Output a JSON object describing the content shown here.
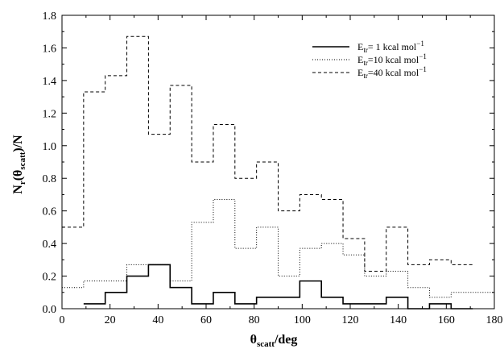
{
  "chart_data": {
    "type": "line",
    "title": "",
    "xlabel": {
      "base": "θ",
      "sub": "scatt",
      "rest": "/deg"
    },
    "ylabel": {
      "p1": "N",
      "s1": "r",
      "p2": "(θ",
      "s2": "scatt",
      "p3": ")/N"
    },
    "xlim": [
      0,
      180
    ],
    "ylim": [
      0,
      1.8
    ],
    "x_ticks": [
      "0",
      "20",
      "40",
      "60",
      "80",
      "100",
      "120",
      "140",
      "160",
      "180"
    ],
    "y_ticks": [
      "0.0",
      "0.2",
      "0.4",
      "0.6",
      "0.8",
      "1.0",
      "1.2",
      "1.4",
      "1.6",
      "1.8"
    ],
    "grid": false,
    "legend_position": "top-right",
    "bin_edges": [
      0,
      9,
      18,
      27,
      36,
      45,
      54,
      63,
      72,
      81,
      90,
      99,
      108,
      117,
      126,
      135,
      144,
      153,
      162,
      171,
      180
    ],
    "series": [
      {
        "name": {
          "pre": "E",
          "sub": "tr",
          "val": "=  1 kcal mol",
          "sup": "−1"
        },
        "style": "solid",
        "color": "#000000",
        "x_start": 9,
        "values": [
          0.03,
          0.1,
          0.2,
          0.27,
          0.13,
          0.03,
          0.1,
          0.03,
          0.07,
          0.07,
          0.17,
          0.07,
          0.03,
          0.03,
          0.07,
          0.0,
          0.03,
          0.0
        ]
      },
      {
        "name": {
          "pre": "E",
          "sub": "tr",
          "val": "=10 kcal mol",
          "sup": "−1"
        },
        "style": "dotted",
        "color": "#000000",
        "x_start": 0,
        "values": [
          0.13,
          0.17,
          0.17,
          0.27,
          0.27,
          0.17,
          0.53,
          0.67,
          0.37,
          0.5,
          0.2,
          0.37,
          0.4,
          0.33,
          0.2,
          0.23,
          0.13,
          0.07,
          0.1,
          0.1
        ]
      },
      {
        "name": {
          "pre": "E",
          "sub": "tr",
          "val": "=40 kcal mol",
          "sup": "−1"
        },
        "style": "dashed",
        "color": "#000000",
        "x_start": 0,
        "values": [
          0.5,
          1.33,
          1.43,
          1.67,
          1.07,
          1.37,
          0.9,
          1.13,
          0.8,
          0.9,
          0.6,
          0.7,
          0.67,
          0.43,
          0.23,
          0.5,
          0.27,
          0.3,
          0.27
        ]
      }
    ]
  }
}
